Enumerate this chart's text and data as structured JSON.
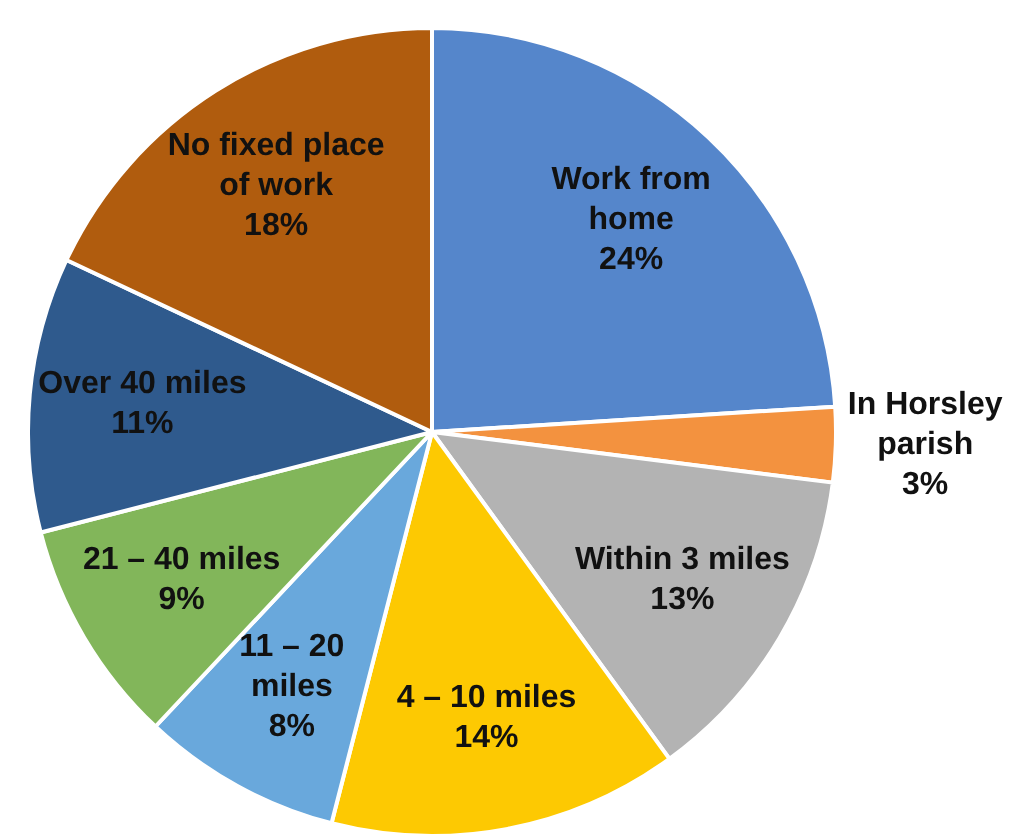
{
  "chart_data": {
    "type": "pie",
    "categories": [
      "Work from\nhome",
      "In Horsley\nparish",
      "Within 3 miles",
      "4 – 10 miles",
      "11 – 20\nmiles",
      "21 – 40 miles",
      "Over 40 miles",
      "No fixed place\nof work"
    ],
    "values": [
      24,
      3,
      13,
      14,
      8,
      9,
      11,
      18
    ],
    "colors": [
      "#5586cb",
      "#f3923f",
      "#b3b3b3",
      "#fdc902",
      "#69a8dc",
      "#82b65a",
      "#2f5a8d",
      "#b05c0e"
    ],
    "value_labels": [
      "24%",
      "3%",
      "13%",
      "14%",
      "8%",
      "9%",
      "11%",
      "18%"
    ]
  }
}
